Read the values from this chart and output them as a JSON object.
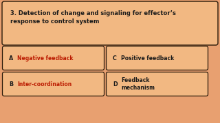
{
  "background_color": "#e8a070",
  "question": "3. Detection of change and signaling for effector’s\nresponse to control system",
  "options": [
    {
      "label": "A",
      "text": "Negative feedback",
      "highlight": true,
      "col": 0,
      "row": 0
    },
    {
      "label": "C",
      "text": "Positive feedback",
      "highlight": false,
      "col": 1,
      "row": 0
    },
    {
      "label": "B",
      "text": "Inter-coordination",
      "highlight": true,
      "col": 0,
      "row": 1
    },
    {
      "label": "D",
      "text": "Feedback\nmechanism",
      "highlight": false,
      "col": 1,
      "row": 1
    }
  ],
  "box_facecolor": "#f2b882",
  "box_edge_color": "#2a1a0a",
  "highlight_color": "#bb1a00",
  "normal_text_color": "#1a1a1a",
  "label_color": "#1a1a1a",
  "question_text_color": "#1a1a1a",
  "question_fontsize": 6.0,
  "option_fontsize": 5.5,
  "label_fontsize": 5.8
}
